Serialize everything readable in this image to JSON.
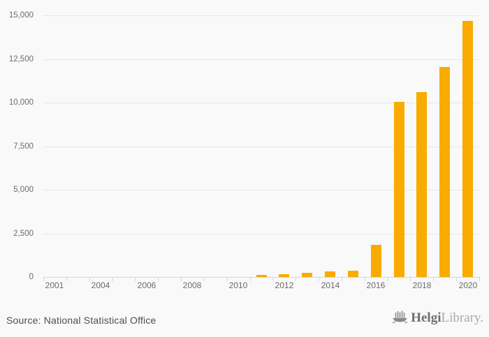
{
  "colors": {
    "background": "#f9f9f9",
    "bar": "#f9ab00",
    "gridline": "#e7e7e7",
    "axis": "#ccd6eb",
    "axis_label": "#6b6b6b",
    "source_text": "#4d4d4d",
    "logo_bold": "#6e6e6e",
    "logo_light": "#a9a9a9",
    "logo_icon": "#8a8a8a"
  },
  "footer": {
    "source_text": "Source: National Statistical Office"
  },
  "logo": {
    "name_bold": "Helgi",
    "name_light": "Library",
    "period": "."
  },
  "chart_data": {
    "type": "bar",
    "title": "",
    "xlabel": "",
    "ylabel": "",
    "ylim": [
      0,
      15000
    ],
    "ytick_interval": 2500,
    "yticks": [
      {
        "value": 0,
        "label": "0"
      },
      {
        "value": 2500,
        "label": "2,500"
      },
      {
        "value": 5000,
        "label": "5,000"
      },
      {
        "value": 7500,
        "label": "7,500"
      },
      {
        "value": 10000,
        "label": "10,000"
      },
      {
        "value": 12500,
        "label": "12,500"
      },
      {
        "value": 15000,
        "label": "15,000"
      }
    ],
    "n_slots": 19,
    "xticks": [
      {
        "slot": 0,
        "label": "2001"
      },
      {
        "slot": 2,
        "label": "2004"
      },
      {
        "slot": 4,
        "label": "2006"
      },
      {
        "slot": 6,
        "label": "2008"
      },
      {
        "slot": 8,
        "label": "2010"
      },
      {
        "slot": 10,
        "label": "2012"
      },
      {
        "slot": 12,
        "label": "2014"
      },
      {
        "slot": 14,
        "label": "2016"
      },
      {
        "slot": 16,
        "label": "2018"
      },
      {
        "slot": 18,
        "label": "2020"
      }
    ],
    "series": [
      {
        "name": "value",
        "points": [
          {
            "slot": 9,
            "year": 2011,
            "value": 120
          },
          {
            "slot": 10,
            "year": 2012,
            "value": 170
          },
          {
            "slot": 11,
            "year": 2013,
            "value": 240
          },
          {
            "slot": 12,
            "year": 2014,
            "value": 320
          },
          {
            "slot": 13,
            "year": 2015,
            "value": 380
          },
          {
            "slot": 14,
            "year": 2016,
            "value": 1830
          },
          {
            "slot": 15,
            "year": 2017,
            "value": 10050
          },
          {
            "slot": 16,
            "year": 2018,
            "value": 10600
          },
          {
            "slot": 17,
            "year": 2019,
            "value": 12050
          },
          {
            "slot": 18,
            "year": 2020,
            "value": 14700
          }
        ]
      }
    ],
    "grid": true,
    "legend": false
  }
}
